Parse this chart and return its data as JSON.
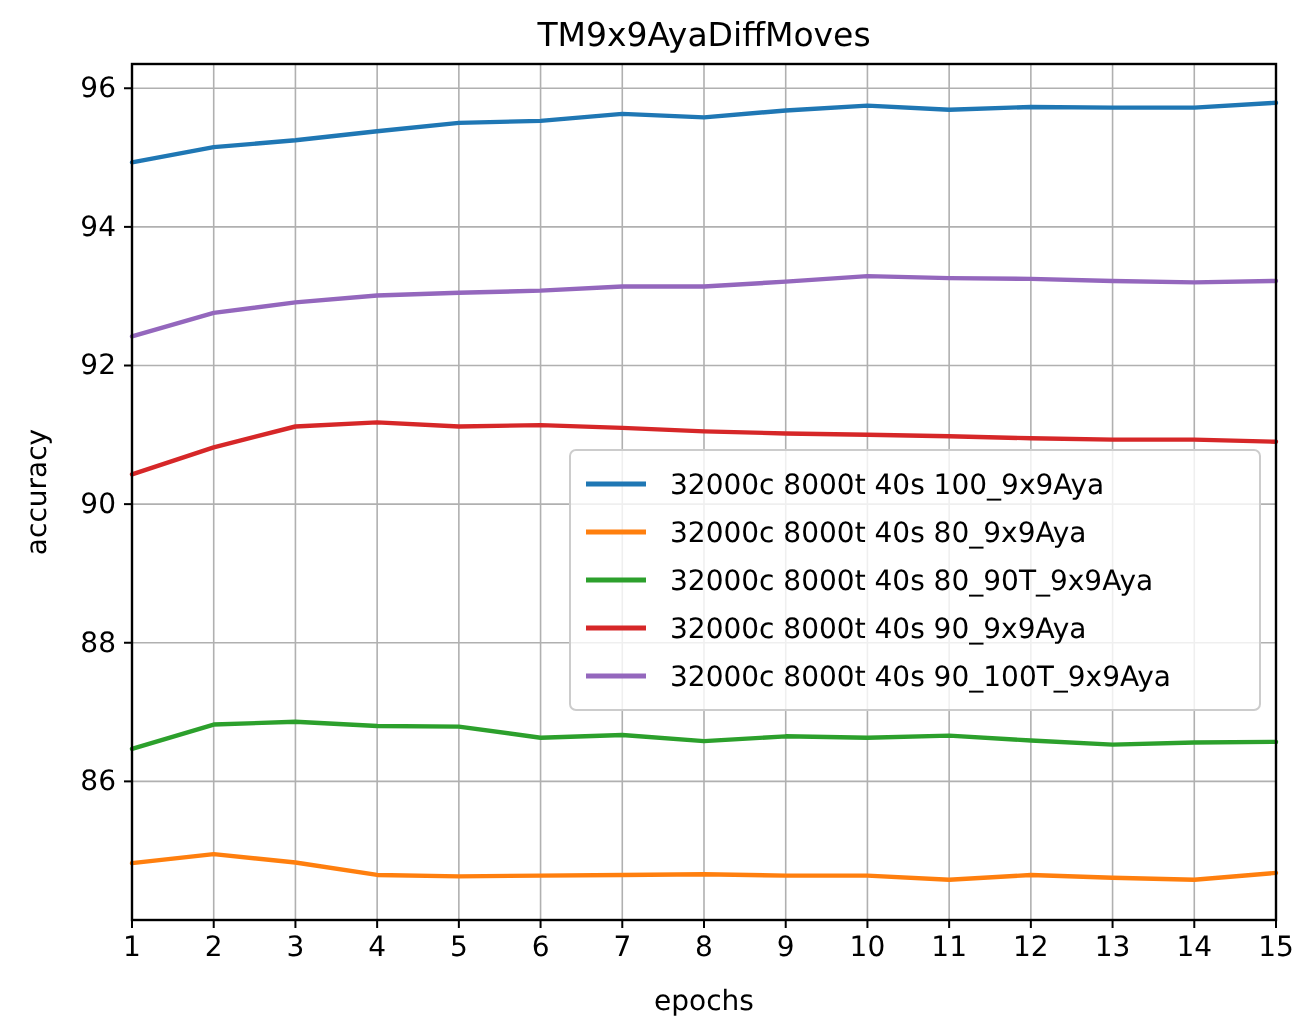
{
  "chart_data": {
    "type": "line",
    "title": "TM9x9AyaDiffMoves",
    "xlabel": "epochs",
    "ylabel": "accuracy",
    "x": [
      1,
      2,
      3,
      4,
      5,
      6,
      7,
      8,
      9,
      10,
      11,
      12,
      13,
      14,
      15
    ],
    "xlim": [
      1,
      15
    ],
    "xticks": [
      1,
      2,
      3,
      4,
      5,
      6,
      7,
      8,
      9,
      10,
      11,
      12,
      13,
      14,
      15
    ],
    "ylim": [
      84.0,
      96.35
    ],
    "yticks": [
      86,
      88,
      90,
      92,
      94,
      96
    ],
    "grid": true,
    "legend": "center right",
    "line_style": "solid",
    "marker": "none",
    "series": [
      {
        "name": "32000c 8000t 40s 100_9x9Aya",
        "color": "#1f77b4",
        "values": [
          94.93,
          95.15,
          95.25,
          95.38,
          95.5,
          95.53,
          95.63,
          95.58,
          95.68,
          95.75,
          95.69,
          95.73,
          95.72,
          95.72,
          95.79
        ]
      },
      {
        "name": "32000c 8000t 40s 80_9x9Aya",
        "color": "#ff7f0e",
        "values": [
          84.82,
          84.95,
          84.83,
          84.65,
          84.63,
          84.64,
          84.65,
          84.66,
          84.64,
          84.64,
          84.58,
          84.65,
          84.61,
          84.58,
          84.68
        ]
      },
      {
        "name": "32000c 8000t 40s 80_90T_9x9Aya",
        "color": "#2ca02c",
        "values": [
          86.47,
          86.82,
          86.86,
          86.8,
          86.79,
          86.63,
          86.67,
          86.58,
          86.65,
          86.63,
          86.66,
          86.59,
          86.53,
          86.56,
          86.57
        ]
      },
      {
        "name": "32000c 8000t 40s 90_9x9Aya",
        "color": "#d62728",
        "values": [
          90.43,
          90.82,
          91.12,
          91.18,
          91.12,
          91.14,
          91.1,
          91.05,
          91.02,
          91.0,
          90.98,
          90.95,
          90.93,
          90.93,
          90.9
        ]
      },
      {
        "name": "32000c 8000t 40s 90_100T_9x9Aya",
        "color": "#9467bd",
        "values": [
          92.42,
          92.76,
          92.91,
          93.01,
          93.05,
          93.08,
          93.14,
          93.14,
          93.21,
          93.29,
          93.26,
          93.25,
          93.22,
          93.2,
          93.22
        ]
      }
    ]
  }
}
